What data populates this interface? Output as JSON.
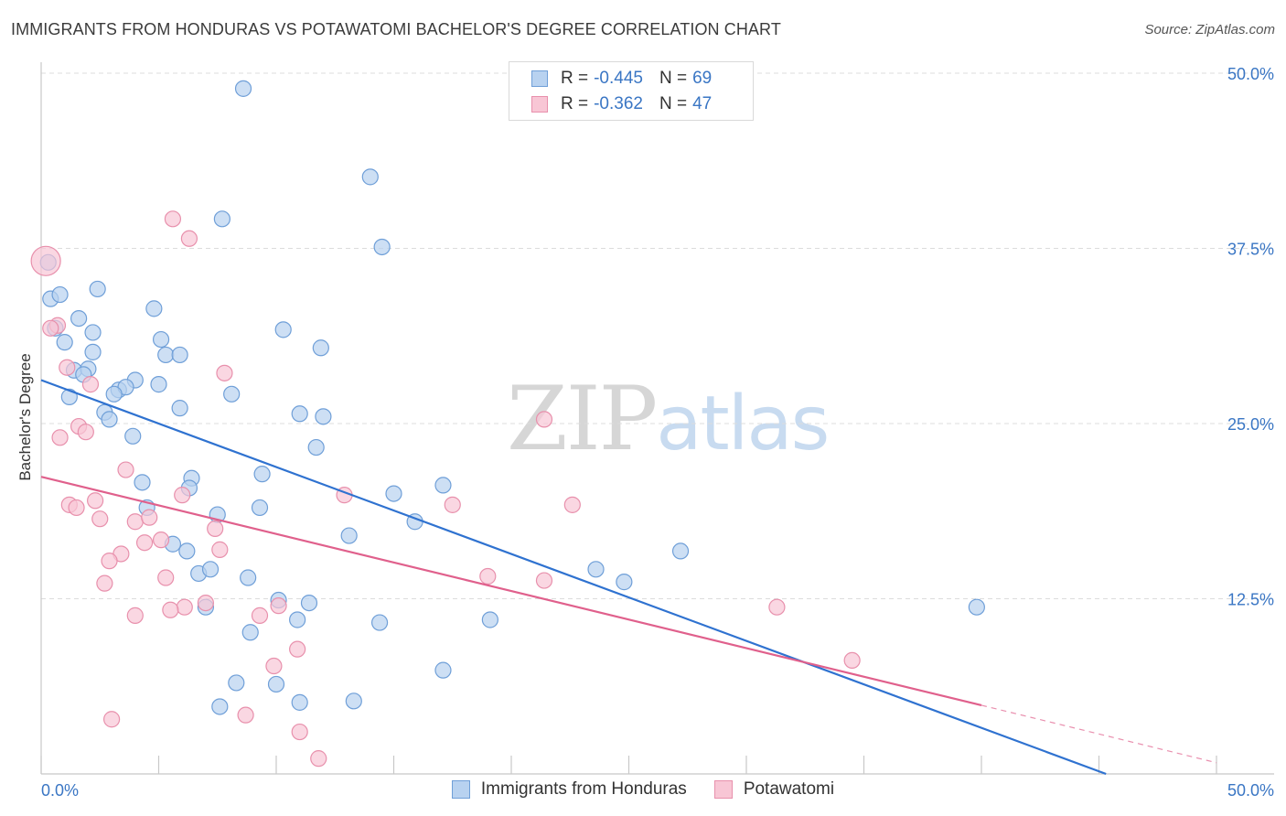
{
  "title": "IMMIGRANTS FROM HONDURAS VS POTAWATOMI BACHELOR'S DEGREE CORRELATION CHART",
  "source": "Source: ZipAtlas.com",
  "watermark": {
    "zip": "ZIP",
    "atlas": "atlas"
  },
  "legend_top": [
    {
      "r_label": "R =",
      "r_value": "-0.445",
      "n_label": "N =",
      "n_value": "69"
    },
    {
      "r_label": "R =",
      "r_value": "-0.362",
      "n_label": "N =",
      "n_value": "47"
    }
  ],
  "colors": {
    "blue_fill": "#b8d2f0",
    "blue_stroke": "#6f9fd8",
    "blue_line": "#2f72d0",
    "pink_fill": "#f8c6d5",
    "pink_stroke": "#e890ac",
    "pink_line": "#e0608c",
    "grid": "#dcdcdc",
    "tick_label": "#3a76c4"
  },
  "chart_data": {
    "type": "scatter",
    "title": "IMMIGRANTS FROM HONDURAS VS POTAWATOMI BACHELOR'S DEGREE CORRELATION CHART",
    "xlabel": "",
    "ylabel": "Bachelor's Degree",
    "xlim": [
      0,
      50
    ],
    "ylim": [
      0,
      50
    ],
    "x_tick_labels": [
      "0.0%",
      "50.0%"
    ],
    "y_ticks": [
      12.5,
      25.0,
      37.5,
      50.0
    ],
    "y_tick_labels": [
      "12.5%",
      "25.0%",
      "37.5%",
      "50.0%"
    ],
    "grid": true,
    "legend": "bottom-center",
    "series": [
      {
        "name": "Immigrants from Honduras",
        "trend": {
          "x": [
            0,
            45.3
          ],
          "y": [
            28.1,
            0
          ]
        },
        "points": [
          [
            8.6,
            48.9
          ],
          [
            14.0,
            42.6
          ],
          [
            7.7,
            39.6
          ],
          [
            14.5,
            37.6
          ],
          [
            0.3,
            36.5
          ],
          [
            0.4,
            33.9
          ],
          [
            0.8,
            34.2
          ],
          [
            2.4,
            34.6
          ],
          [
            4.8,
            33.2
          ],
          [
            1.6,
            32.5
          ],
          [
            0.6,
            31.8
          ],
          [
            2.2,
            31.5
          ],
          [
            10.3,
            31.7
          ],
          [
            5.1,
            31.0
          ],
          [
            1.0,
            30.8
          ],
          [
            11.9,
            30.4
          ],
          [
            2.2,
            30.1
          ],
          [
            5.3,
            29.9
          ],
          [
            5.9,
            29.9
          ],
          [
            1.4,
            28.8
          ],
          [
            2.0,
            28.9
          ],
          [
            1.8,
            28.5
          ],
          [
            4.0,
            28.1
          ],
          [
            5.0,
            27.8
          ],
          [
            3.3,
            27.4
          ],
          [
            3.6,
            27.6
          ],
          [
            3.1,
            27.1
          ],
          [
            8.1,
            27.1
          ],
          [
            1.2,
            26.9
          ],
          [
            5.9,
            26.1
          ],
          [
            2.7,
            25.8
          ],
          [
            11.0,
            25.7
          ],
          [
            12.0,
            25.5
          ],
          [
            2.9,
            25.3
          ],
          [
            3.9,
            24.1
          ],
          [
            11.7,
            23.3
          ],
          [
            9.4,
            21.4
          ],
          [
            6.4,
            21.1
          ],
          [
            4.3,
            20.8
          ],
          [
            6.3,
            20.4
          ],
          [
            17.1,
            20.6
          ],
          [
            15.0,
            20.0
          ],
          [
            4.5,
            19.0
          ],
          [
            9.3,
            19.0
          ],
          [
            7.5,
            18.5
          ],
          [
            15.9,
            18.0
          ],
          [
            13.1,
            17.0
          ],
          [
            5.6,
            16.4
          ],
          [
            6.2,
            15.9
          ],
          [
            27.2,
            15.9
          ],
          [
            23.6,
            14.6
          ],
          [
            6.7,
            14.3
          ],
          [
            7.2,
            14.6
          ],
          [
            8.8,
            14.0
          ],
          [
            24.8,
            13.7
          ],
          [
            10.1,
            12.4
          ],
          [
            11.4,
            12.2
          ],
          [
            7.0,
            11.9
          ],
          [
            10.9,
            11.0
          ],
          [
            19.1,
            11.0
          ],
          [
            14.4,
            10.8
          ],
          [
            39.8,
            11.9
          ],
          [
            8.9,
            10.1
          ],
          [
            17.1,
            7.4
          ],
          [
            8.3,
            6.5
          ],
          [
            10.0,
            6.4
          ],
          [
            11.0,
            5.1
          ],
          [
            13.3,
            5.2
          ],
          [
            7.6,
            4.8
          ]
        ]
      },
      {
        "name": "Potawatomi",
        "trend": {
          "x": [
            0,
            40.0
          ],
          "y": [
            21.2,
            4.9
          ]
        },
        "trend_dashed": {
          "x": [
            40.0,
            50.0
          ],
          "y": [
            4.9,
            0.8
          ]
        },
        "points": [
          [
            0.2,
            36.6
          ],
          [
            5.6,
            39.6
          ],
          [
            6.3,
            38.2
          ],
          [
            0.7,
            32.0
          ],
          [
            0.4,
            31.8
          ],
          [
            1.1,
            29.0
          ],
          [
            7.8,
            28.6
          ],
          [
            2.1,
            27.8
          ],
          [
            1.6,
            24.8
          ],
          [
            1.9,
            24.4
          ],
          [
            0.8,
            24.0
          ],
          [
            21.4,
            25.3
          ],
          [
            3.6,
            21.7
          ],
          [
            12.9,
            19.9
          ],
          [
            6.0,
            19.9
          ],
          [
            1.2,
            19.2
          ],
          [
            1.5,
            19.0
          ],
          [
            17.5,
            19.2
          ],
          [
            22.6,
            19.2
          ],
          [
            2.3,
            19.5
          ],
          [
            2.5,
            18.2
          ],
          [
            4.0,
            18.0
          ],
          [
            4.6,
            18.3
          ],
          [
            7.4,
            17.5
          ],
          [
            5.1,
            16.7
          ],
          [
            4.4,
            16.5
          ],
          [
            7.6,
            16.0
          ],
          [
            3.4,
            15.7
          ],
          [
            2.9,
            15.2
          ],
          [
            5.3,
            14.0
          ],
          [
            19.0,
            14.1
          ],
          [
            21.4,
            13.8
          ],
          [
            2.7,
            13.6
          ],
          [
            7.0,
            12.2
          ],
          [
            10.1,
            12.0
          ],
          [
            6.1,
            11.9
          ],
          [
            5.5,
            11.7
          ],
          [
            4.0,
            11.3
          ],
          [
            9.3,
            11.3
          ],
          [
            31.3,
            11.9
          ],
          [
            10.9,
            8.9
          ],
          [
            9.9,
            7.7
          ],
          [
            34.5,
            8.1
          ],
          [
            8.7,
            4.2
          ],
          [
            3.0,
            3.9
          ],
          [
            11.0,
            3.0
          ],
          [
            11.8,
            1.1
          ]
        ]
      }
    ]
  }
}
